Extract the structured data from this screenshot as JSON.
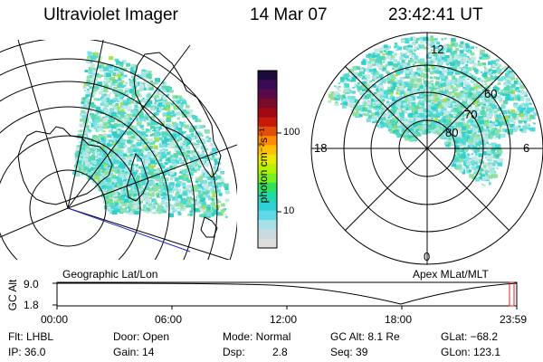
{
  "header": {
    "instrument": "Ultraviolet Imager",
    "date": "14 Mar 07",
    "time": "23:42:41 UT"
  },
  "colorbar": {
    "label": "photon cm⁻²s⁻¹",
    "ticks": [
      "100",
      "10"
    ],
    "colors": [
      "#1c0a3a",
      "#3a0a55",
      "#5a0a4a",
      "#7a0a2a",
      "#a00a14",
      "#c81a0a",
      "#e0500a",
      "#ff8c00",
      "#ffc000",
      "#e8e800",
      "#b8f000",
      "#7af020",
      "#30e060",
      "#20d8a8",
      "#30d0d8",
      "#60d8e8",
      "#a8e0e8",
      "#c8dce0",
      "#dcdcdc"
    ]
  },
  "left_map": {
    "caption": "Geographic Lat/Lon"
  },
  "right_map": {
    "caption": "Apex MLat/MLT",
    "mlt_labels": {
      "top": "12",
      "left": "18",
      "right": "6",
      "bottom": "0"
    },
    "lat_labels": [
      "60",
      "70",
      "80"
    ]
  },
  "altitude_plot": {
    "ylabel": "GC Alt",
    "ymax": "9.0",
    "ymin": "1.8",
    "x_ticks": [
      "00:00",
      "06:00",
      "12:00",
      "18:00",
      "23:59"
    ]
  },
  "status": {
    "flt": "Flt: LHBL",
    "ip": "IP: 36.0",
    "door": "Door: Open",
    "gain": "Gain: 14",
    "mode": "Mode: Normal",
    "dsp_label": "Dsp:",
    "dsp_value": "2.8",
    "gc_alt": "GC Alt: 8.1 Re",
    "seq": "Seq: 39",
    "glat": "GLat: −68.2",
    "glon": "GLon: 123.1"
  }
}
